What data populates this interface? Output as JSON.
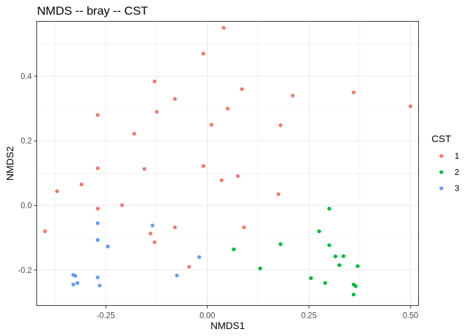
{
  "chart_data": {
    "type": "scatter",
    "title": "NMDS -- bray -- CST",
    "xlabel": "NMDS1",
    "ylabel": "NMDS2",
    "xlim": [
      -0.42,
      0.52
    ],
    "ylim": [
      -0.31,
      0.57
    ],
    "x_ticks": [
      -0.25,
      0.0,
      0.25,
      0.5
    ],
    "x_tick_labels": [
      "-0.25",
      "0.00",
      "0.25",
      "0.50"
    ],
    "y_ticks": [
      -0.2,
      0.0,
      0.2,
      0.4
    ],
    "y_tick_labels": [
      "-0.2",
      "0.0",
      "0.2",
      "0.4"
    ],
    "grid": true,
    "legend": {
      "title": "CST",
      "position": "right"
    },
    "series": [
      {
        "name": "1",
        "color": "#f8766d",
        "points": [
          [
            0.04,
            0.55
          ],
          [
            -0.01,
            0.47
          ],
          [
            -0.13,
            0.384
          ],
          [
            0.085,
            0.36
          ],
          [
            0.36,
            0.35
          ],
          [
            0.21,
            0.34
          ],
          [
            -0.08,
            0.33
          ],
          [
            0.5,
            0.307
          ],
          [
            0.05,
            0.3
          ],
          [
            -0.125,
            0.29
          ],
          [
            -0.27,
            0.28
          ],
          [
            0.01,
            0.25
          ],
          [
            0.18,
            0.248
          ],
          [
            -0.18,
            0.222
          ],
          [
            -0.01,
            0.122
          ],
          [
            -0.27,
            0.115
          ],
          [
            -0.155,
            0.113
          ],
          [
            0.075,
            0.091
          ],
          [
            0.035,
            0.078
          ],
          [
            -0.31,
            0.065
          ],
          [
            -0.37,
            0.044
          ],
          [
            0.175,
            0.035
          ],
          [
            -0.21,
            0.001
          ],
          [
            -0.27,
            -0.01
          ],
          [
            0.09,
            -0.068
          ],
          [
            -0.08,
            -0.068
          ],
          [
            -0.4,
            -0.08
          ],
          [
            -0.14,
            -0.087
          ],
          [
            -0.13,
            -0.114
          ],
          [
            -0.045,
            -0.19
          ]
        ]
      },
      {
        "name": "2",
        "color": "#00ba38",
        "points": [
          [
            0.3,
            -0.01
          ],
          [
            0.275,
            -0.08
          ],
          [
            0.3,
            -0.123
          ],
          [
            0.18,
            -0.12
          ],
          [
            0.065,
            -0.136
          ],
          [
            0.315,
            -0.158
          ],
          [
            0.335,
            -0.157
          ],
          [
            0.325,
            -0.185
          ],
          [
            0.37,
            -0.188
          ],
          [
            0.13,
            -0.195
          ],
          [
            0.255,
            -0.225
          ],
          [
            0.29,
            -0.24
          ],
          [
            0.36,
            -0.245
          ],
          [
            0.365,
            -0.25
          ],
          [
            0.36,
            -0.276
          ]
        ]
      },
      {
        "name": "3",
        "color": "#619cff",
        "points": [
          [
            -0.27,
            -0.055
          ],
          [
            -0.135,
            -0.062
          ],
          [
            -0.27,
            -0.107
          ],
          [
            -0.245,
            -0.127
          ],
          [
            -0.02,
            -0.16
          ],
          [
            -0.33,
            -0.215
          ],
          [
            -0.325,
            -0.218
          ],
          [
            -0.075,
            -0.217
          ],
          [
            -0.27,
            -0.223
          ],
          [
            -0.32,
            -0.24
          ],
          [
            -0.33,
            -0.245
          ],
          [
            -0.265,
            -0.248
          ]
        ]
      }
    ]
  }
}
